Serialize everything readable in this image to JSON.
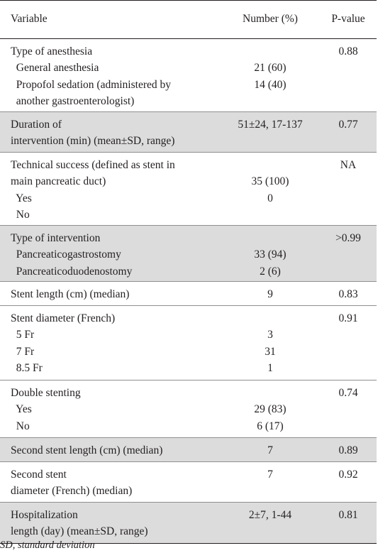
{
  "table": {
    "headers": {
      "variable": "Variable",
      "number": "Number (%)",
      "pvalue": "P-value"
    },
    "rows": [
      {
        "variable": [
          "Type of anesthesia",
          "  General anesthesia",
          "  Propofol sedation (administered by",
          "  another gastroenterologist)"
        ],
        "number": [
          "",
          "21 (60)",
          "14 (40)",
          ""
        ],
        "pvalue": [
          "0.88"
        ]
      },
      {
        "variable": [
          "Duration of",
          "intervention (min) (mean±SD, range)"
        ],
        "number": [
          "51±24, 17-137"
        ],
        "pvalue": [
          "0.77"
        ]
      },
      {
        "variable": [
          "Technical success (defined as stent in",
          "main pancreatic duct)",
          "  Yes",
          "  No"
        ],
        "number": [
          "",
          "35 (100)",
          "0",
          ""
        ],
        "pvalue": [
          "NA"
        ]
      },
      {
        "variable": [
          "Type of intervention",
          "  Pancreaticogastrostomy",
          "  Pancreaticoduodenostomy"
        ],
        "number": [
          "",
          "33 (94)",
          "2 (6)"
        ],
        "pvalue": [
          ">0.99"
        ]
      },
      {
        "variable": [
          "Stent length (cm) (median)"
        ],
        "number": [
          "9"
        ],
        "pvalue": [
          "0.83"
        ]
      },
      {
        "variable": [
          "Stent diameter (French)",
          "  5 Fr",
          "  7 Fr",
          "  8.5 Fr"
        ],
        "number": [
          "",
          "3",
          "31",
          "1"
        ],
        "pvalue": [
          "0.91"
        ]
      },
      {
        "variable": [
          "Double stenting",
          "  Yes",
          "  No"
        ],
        "number": [
          "",
          "29 (83)",
          "6 (17)"
        ],
        "pvalue": [
          "0.74"
        ]
      },
      {
        "variable": [
          "Second stent length (cm) (median)"
        ],
        "number": [
          "7"
        ],
        "pvalue": [
          "0.89"
        ]
      },
      {
        "variable": [
          "Second stent",
          "diameter (French) (median)"
        ],
        "number": [
          "7"
        ],
        "pvalue": [
          "0.92"
        ]
      },
      {
        "variable": [
          "Hospitalization",
          "length (day) (mean±SD, range)"
        ],
        "number": [
          "2±7, 1-44"
        ],
        "pvalue": [
          "0.81"
        ]
      }
    ]
  },
  "footnote": "SD, standard deviation"
}
